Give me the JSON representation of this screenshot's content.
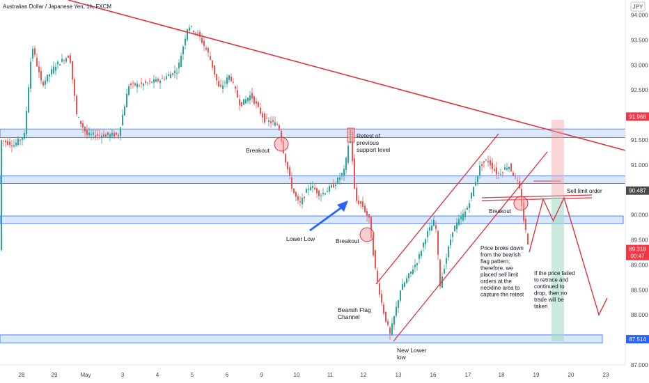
{
  "header": {
    "symbol_title": "Australian Dollar / Japanese Yen, 1h, FXCM",
    "currency_badge": "JPY"
  },
  "chart_data": {
    "type": "candlestick",
    "title": "Australian Dollar / Japanese Yen, 1h, FXCM",
    "ylim": [
      87.0,
      94.3
    ],
    "y_ticks": [
      "94.000",
      "93.500",
      "93.000",
      "92.500",
      "92.000",
      "91.500",
      "91.000",
      "90.500",
      "90.000",
      "89.500",
      "89.000",
      "88.500",
      "88.000",
      "87.500",
      "87.000"
    ],
    "x_ticks": [
      "28",
      "29",
      "May",
      "3",
      "4",
      "5",
      "6",
      "9",
      "10",
      "11",
      "12",
      "13",
      "16",
      "17",
      "18",
      "19",
      "20",
      "23"
    ],
    "price_labels": [
      {
        "text": "91.968",
        "value": 91.968,
        "color": "#f23645"
      },
      {
        "text": "90.487",
        "value": 90.487,
        "color": "#4a4a4a"
      },
      {
        "text": "89.318",
        "value": 89.318,
        "color": "#f23645"
      },
      {
        "text": "00:47",
        "value": 89.2,
        "color": "#f23645"
      },
      {
        "text": "87.514",
        "value": 87.514,
        "color": "#2962ff"
      }
    ],
    "zones": [
      {
        "low": 91.55,
        "high": 91.72
      },
      {
        "low": 90.63,
        "high": 90.78
      },
      {
        "low": 89.83,
        "high": 89.98
      },
      {
        "low": 87.44,
        "high": 87.6
      }
    ],
    "annotations": {
      "retest": "Retest of previous support level",
      "breakout1": "Breakout",
      "breakout2": "Breakout",
      "breakout3": "Breakout",
      "lower_low": "Lower Low",
      "new_lower_low": "New Lower low",
      "bearish_flag": "Bearish Flag Channel",
      "sell_limit": "Sell limit order",
      "price_broke": "Price broke down from the bearish flag pattern; therefore, we placed sell limit orders at the neckline area to capture the retest",
      "if_failed": "If the price failed to retrace and continued to drop, then no trade will be taken"
    },
    "colors": {
      "up": "#26a69a",
      "down": "#ef5350",
      "trend": "#e0323c",
      "zone_fill": "#dbe7fb",
      "zone_stroke": "#2962ff",
      "arrow": "#2962ff"
    }
  }
}
